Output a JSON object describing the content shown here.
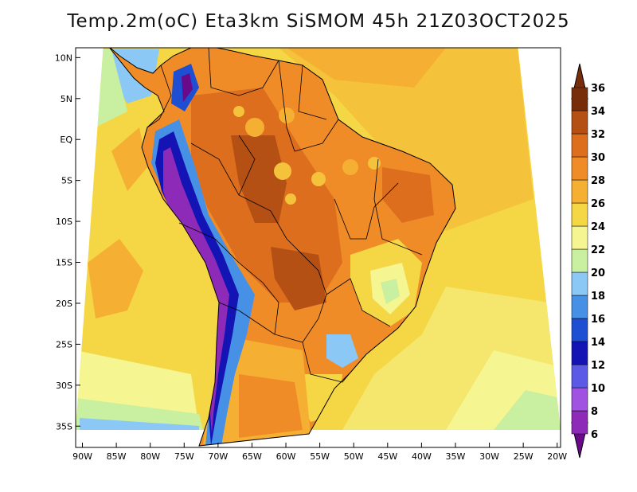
{
  "title": "Temp.2m(oC) Eta3km SiSMOM 45h 21Z03OCT2025",
  "map": {
    "variable": "Temp.2m",
    "units": "oC",
    "lon_range": [
      -90,
      -20
    ],
    "lat_range": [
      -38,
      11
    ],
    "lat_ticks": [
      {
        "value": 10,
        "label": "10N"
      },
      {
        "value": 5,
        "label": "5N"
      },
      {
        "value": 0,
        "label": "EQ"
      },
      {
        "value": -5,
        "label": "5S"
      },
      {
        "value": -10,
        "label": "10S"
      },
      {
        "value": -15,
        "label": "15S"
      },
      {
        "value": -20,
        "label": "20S"
      },
      {
        "value": -25,
        "label": "25S"
      },
      {
        "value": -30,
        "label": "30S"
      },
      {
        "value": -35,
        "label": "35S"
      }
    ],
    "lon_ticks": [
      {
        "value": -90,
        "label": "90W"
      },
      {
        "value": -85,
        "label": "85W"
      },
      {
        "value": -80,
        "label": "80W"
      },
      {
        "value": -75,
        "label": "75W"
      },
      {
        "value": -70,
        "label": "70W"
      },
      {
        "value": -65,
        "label": "65W"
      },
      {
        "value": -60,
        "label": "60W"
      },
      {
        "value": -55,
        "label": "55W"
      },
      {
        "value": -50,
        "label": "50W"
      },
      {
        "value": -45,
        "label": "45W"
      },
      {
        "value": -40,
        "label": "40W"
      },
      {
        "value": -35,
        "label": "35W"
      },
      {
        "value": -30,
        "label": "30W"
      },
      {
        "value": -25,
        "label": "25W"
      },
      {
        "value": -20,
        "label": "20W"
      }
    ]
  },
  "colorbar": {
    "labels": [
      "6",
      "8",
      "10",
      "12",
      "14",
      "16",
      "18",
      "20",
      "22",
      "24",
      "26",
      "28",
      "30",
      "32",
      "34",
      "36"
    ],
    "colors": [
      "#6a0a8a",
      "#8e2ab8",
      "#a052e0",
      "#5a5ae6",
      "#1414b4",
      "#1e4ed2",
      "#4690e6",
      "#8cc8f5",
      "#c8f0a0",
      "#f5f591",
      "#f5d746",
      "#f5af32",
      "#f08c28",
      "#dc6e1e",
      "#b45014",
      "#782d0a"
    ]
  }
}
